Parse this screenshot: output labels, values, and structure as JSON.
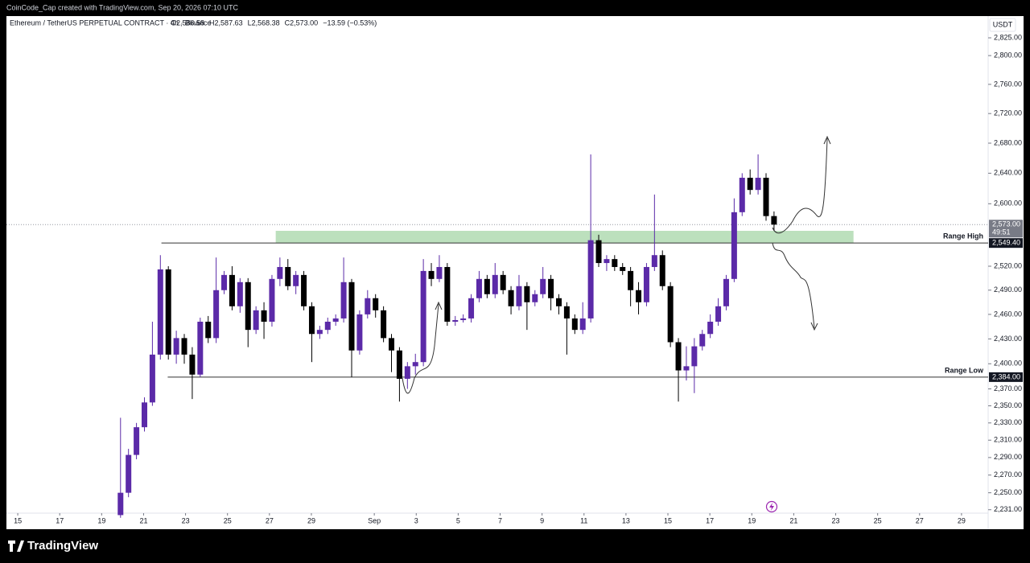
{
  "header": {
    "credit": "CoinCode_Cap created with TradingView.com, Sep 20, 2026 07:10 UTC"
  },
  "chart_data": {
    "type": "candlestick",
    "symbol": "Ethereum / TetherUS PERPETUAL CONTRACT · 4h · Binance",
    "ohlc_labels": [
      "O2,586.58",
      "H2,587.63",
      "L2,568.38",
      "C2,573.00",
      "−13.59 (−0.53%)"
    ],
    "currency": "USDT",
    "up_color": "#5b2aa8",
    "down_color": "#000000",
    "log_scale": true,
    "x": [
      4.9,
      5.28,
      5.66,
      6.04,
      6.42,
      6.8,
      7.18,
      7.56,
      7.94,
      8.32,
      8.7,
      9.08,
      9.46,
      9.84,
      10.22,
      10.6,
      10.98,
      11.36,
      11.74,
      12.12,
      12.5,
      12.88,
      13.26,
      13.64,
      14.02,
      14.4,
      14.78,
      15.16,
      15.54,
      15.92,
      16.3,
      16.68,
      17.06,
      17.44,
      17.82,
      18.2,
      18.58,
      18.96,
      19.34,
      19.72,
      20.1,
      20.48,
      20.86,
      21.24,
      21.62,
      22,
      22.38,
      22.76,
      23.14,
      23.52,
      23.9,
      24.28,
      24.66,
      25.04,
      25.42,
      25.8,
      26.18,
      26.56,
      26.94,
      27.32,
      27.7,
      28.08,
      28.46,
      28.84,
      29.22,
      29.6,
      29.98,
      30.36,
      30.74,
      31.12,
      31.5,
      31.88,
      32.26,
      32.64,
      33.02,
      33.4,
      33.78,
      34.16,
      34.54,
      34.92,
      35.3,
      35.68,
      36.06
    ],
    "open": [
      2225,
      2250,
      2293,
      2325,
      2354,
      2411,
      2516,
      2411,
      2431,
      2411,
      2387,
      2451,
      2431,
      2490,
      2509,
      2470,
      2500,
      2441,
      2465,
      2451,
      2504,
      2519,
      2495,
      2509,
      2470,
      2436,
      2441,
      2451,
      2455,
      2500,
      2416,
      2460,
      2480,
      2465,
      2431,
      2416,
      2382,
      2397,
      2402,
      2514,
      2504,
      2519,
      2451,
      2453,
      2455,
      2480,
      2504,
      2485,
      2509,
      2490,
      2470,
      2495,
      2475,
      2485,
      2504,
      2480,
      2470,
      2455,
      2441,
      2455,
      2553,
      2524,
      2529,
      2519,
      2514,
      2490,
      2475,
      2519,
      2534,
      2495,
      2426,
      2392,
      2397,
      2421,
      2436,
      2451,
      2470,
      2504,
      2589,
      2634,
      2618,
      2634,
      2584
    ],
    "high": [
      2336,
      2300,
      2330,
      2360,
      2451,
      2534,
      2520,
      2440,
      2436,
      2420,
      2456,
      2458,
      2531,
      2514,
      2520,
      2505,
      2505,
      2470,
      2475,
      2509,
      2531,
      2529,
      2514,
      2514,
      2475,
      2446,
      2456,
      2460,
      2531,
      2504,
      2465,
      2490,
      2485,
      2470,
      2436,
      2420,
      2402,
      2412,
      2529,
      2524,
      2534,
      2524,
      2458,
      2460,
      2485,
      2514,
      2509,
      2524,
      2514,
      2495,
      2509,
      2500,
      2490,
      2519,
      2509,
      2485,
      2475,
      2460,
      2475,
      2665,
      2560,
      2534,
      2534,
      2524,
      2519,
      2500,
      2524,
      2612,
      2540,
      2500,
      2431,
      2421,
      2431,
      2441,
      2460,
      2480,
      2509,
      2607,
      2640,
      2645,
      2665,
      2640,
      2590
    ],
    "low": [
      2222,
      2245,
      2288,
      2320,
      2350,
      2405,
      2405,
      2400,
      2400,
      2358,
      2384,
      2425,
      2425,
      2485,
      2465,
      2462,
      2420,
      2436,
      2430,
      2445,
      2495,
      2490,
      2485,
      2465,
      2402,
      2430,
      2436,
      2446,
      2450,
      2384,
      2411,
      2455,
      2456,
      2426,
      2390,
      2355,
      2370,
      2387,
      2397,
      2495,
      2500,
      2446,
      2446,
      2450,
      2450,
      2475,
      2480,
      2480,
      2485,
      2460,
      2465,
      2441,
      2470,
      2480,
      2465,
      2460,
      2411,
      2436,
      2436,
      2450,
      2519,
      2514,
      2514,
      2509,
      2470,
      2460,
      2470,
      2514,
      2490,
      2420,
      2355,
      2380,
      2365,
      2416,
      2431,
      2446,
      2465,
      2500,
      2584,
      2612,
      2612,
      2578,
      2565
    ],
    "close": [
      2250,
      2293,
      2325,
      2354,
      2411,
      2516,
      2411,
      2431,
      2411,
      2387,
      2451,
      2431,
      2490,
      2509,
      2470,
      2500,
      2441,
      2465,
      2451,
      2504,
      2519,
      2495,
      2509,
      2470,
      2436,
      2441,
      2451,
      2455,
      2500,
      2416,
      2460,
      2480,
      2465,
      2431,
      2416,
      2382,
      2397,
      2402,
      2514,
      2504,
      2519,
      2451,
      2453,
      2455,
      2480,
      2504,
      2485,
      2509,
      2490,
      2470,
      2495,
      2475,
      2485,
      2504,
      2480,
      2470,
      2455,
      2441,
      2455,
      2553,
      2524,
      2529,
      2519,
      2514,
      2490,
      2475,
      2519,
      2534,
      2495,
      2426,
      2392,
      2397,
      2421,
      2436,
      2451,
      2470,
      2504,
      2589,
      2634,
      2618,
      2634,
      2584,
      2573
    ],
    "xlim": [
      -0.54,
      46.27
    ],
    "xticks": [
      {
        "value": 0,
        "label": "15"
      },
      {
        "value": 2,
        "label": "17"
      },
      {
        "value": 4,
        "label": "19"
      },
      {
        "value": 6,
        "label": "21"
      },
      {
        "value": 8,
        "label": "23"
      },
      {
        "value": 10,
        "label": "25"
      },
      {
        "value": 12,
        "label": "27"
      },
      {
        "value": 14,
        "label": "29"
      },
      {
        "value": 17,
        "label": "Sep"
      },
      {
        "value": 19,
        "label": "3"
      },
      {
        "value": 21,
        "label": "5"
      },
      {
        "value": 23,
        "label": "7"
      },
      {
        "value": 25,
        "label": "9"
      },
      {
        "value": 27,
        "label": "11"
      },
      {
        "value": 29,
        "label": "13"
      },
      {
        "value": 31,
        "label": "15"
      },
      {
        "value": 33,
        "label": "17"
      },
      {
        "value": 35,
        "label": "19"
      },
      {
        "value": 37,
        "label": "21"
      },
      {
        "value": 39,
        "label": "23"
      },
      {
        "value": 41,
        "label": "25"
      },
      {
        "value": 43,
        "label": "27"
      },
      {
        "value": 45,
        "label": "29"
      }
    ],
    "ylim": [
      2212,
      2833
    ],
    "yticks": [
      {
        "value": 2825,
        "label": "2,825.00"
      },
      {
        "value": 2800,
        "label": "2,800.00"
      },
      {
        "value": 2760,
        "label": "2,760.00"
      },
      {
        "value": 2720,
        "label": "2,720.00"
      },
      {
        "value": 2680,
        "label": "2,680.00"
      },
      {
        "value": 2640,
        "label": "2,640.00"
      },
      {
        "value": 2600,
        "label": "2,600.00"
      },
      {
        "value": 2520,
        "label": "2,520.00"
      },
      {
        "value": 2490,
        "label": "2,490.00"
      },
      {
        "value": 2460,
        "label": "2,460.00"
      },
      {
        "value": 2430,
        "label": "2,430.00"
      },
      {
        "value": 2400,
        "label": "2,400.00"
      },
      {
        "value": 2370,
        "label": "2,370.00"
      },
      {
        "value": 2350,
        "label": "2,350.00"
      },
      {
        "value": 2330,
        "label": "2,330.00"
      },
      {
        "value": 2310,
        "label": "2,310.00"
      },
      {
        "value": 2290,
        "label": "2,290.00"
      },
      {
        "value": 2270,
        "label": "2,270.00"
      },
      {
        "value": 2250,
        "label": "2,250.00"
      },
      {
        "value": 2231,
        "label": "2,231.00"
      }
    ],
    "last_price": {
      "value": 2573,
      "label": "2,573.00",
      "countdown": "49:51"
    },
    "zones": [
      {
        "x": [
          12.3,
          39.85
        ],
        "y": [
          2549.4,
          2565
        ],
        "color": "#a5d6a7"
      }
    ],
    "levels": [
      {
        "name": "Range High",
        "value": 2549.4,
        "label": "2,549.40",
        "x_start": 6.85
      },
      {
        "name": "Range Low",
        "value": 2384,
        "label": "2,384.00",
        "x_start": 7.15
      }
    ]
  },
  "footer": {
    "brand": "TradingView"
  }
}
